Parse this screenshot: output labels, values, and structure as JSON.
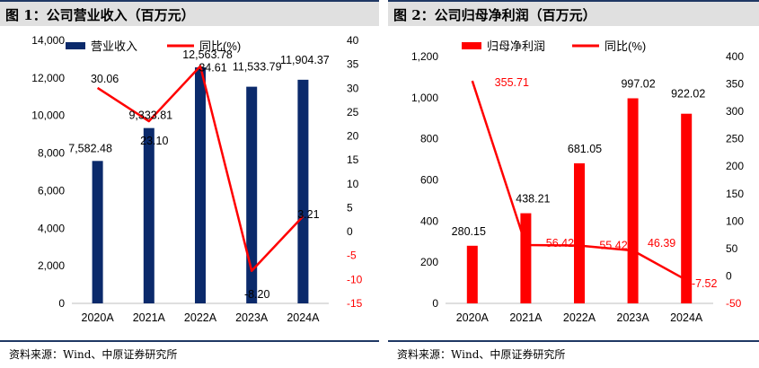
{
  "chart_data": [
    {
      "type": "bar",
      "title": "图 1：公司营业收入（百万元）",
      "categories": [
        "2020A",
        "2021A",
        "2022A",
        "2023A",
        "2024A"
      ],
      "series": [
        {
          "name": "营业收入",
          "axis": "left",
          "kind": "bar",
          "values": [
            7582.48,
            9333.81,
            12563.78,
            11533.79,
            11904.37
          ],
          "labels": [
            "7,582.48",
            "9,333.81",
            "12,563.78",
            "11,533.79",
            "11,904.37"
          ]
        },
        {
          "name": "同比(%)",
          "axis": "right",
          "kind": "line",
          "values": [
            30.06,
            23.1,
            34.61,
            -8.2,
            3.21
          ],
          "labels": [
            "30.06",
            "23.10",
            "34.61",
            "-8.20",
            "3.21"
          ]
        }
      ],
      "y_left": {
        "min": 0,
        "max": 14000,
        "ticks": [
          "0",
          "2,000",
          "4,000",
          "6,000",
          "8,000",
          "10,000",
          "12,000",
          "14,000"
        ]
      },
      "y_right": {
        "min": -15,
        "max": 40,
        "ticks": [
          "-15",
          "-10",
          "-5",
          "0",
          "5",
          "10",
          "15",
          "20",
          "25",
          "30",
          "35",
          "40"
        ],
        "negative_color": "#ff0000"
      },
      "bar_color": "#0b2a6b",
      "line_color": "#ff0000",
      "line_label_color": "#000000",
      "legend": "top",
      "source": "资料来源：Wind、中原证券研究所"
    },
    {
      "type": "bar",
      "title": "图 2：公司归母净利润（百万元）",
      "categories": [
        "2020A",
        "2021A",
        "2022A",
        "2023A",
        "2024A"
      ],
      "series": [
        {
          "name": "归母净利润",
          "axis": "left",
          "kind": "bar",
          "values": [
            280.15,
            438.21,
            681.05,
            997.02,
            922.02
          ],
          "labels": [
            "280.15",
            "438.21",
            "681.05",
            "997.02",
            "922.02"
          ]
        },
        {
          "name": "同比(%)",
          "axis": "right",
          "kind": "line",
          "values": [
            355.71,
            56.42,
            55.42,
            46.39,
            -7.52
          ],
          "labels": [
            "355.71",
            "56.42",
            "55.42",
            "46.39",
            "-7.52"
          ]
        }
      ],
      "y_left": {
        "min": 0,
        "max": 1200,
        "ticks": [
          "0",
          "200",
          "400",
          "600",
          "800",
          "1,000",
          "1,200"
        ]
      },
      "y_right": {
        "min": -50,
        "max": 400,
        "ticks": [
          "-50",
          "0",
          "50",
          "100",
          "150",
          "200",
          "250",
          "300",
          "350",
          "400"
        ],
        "negative_color": "#ff0000"
      },
      "bar_color": "#ff0000",
      "line_color": "#ff0000",
      "line_label_color": "#ff0000",
      "legend": "top",
      "source": "资料来源：Wind、中原证券研究所"
    }
  ]
}
